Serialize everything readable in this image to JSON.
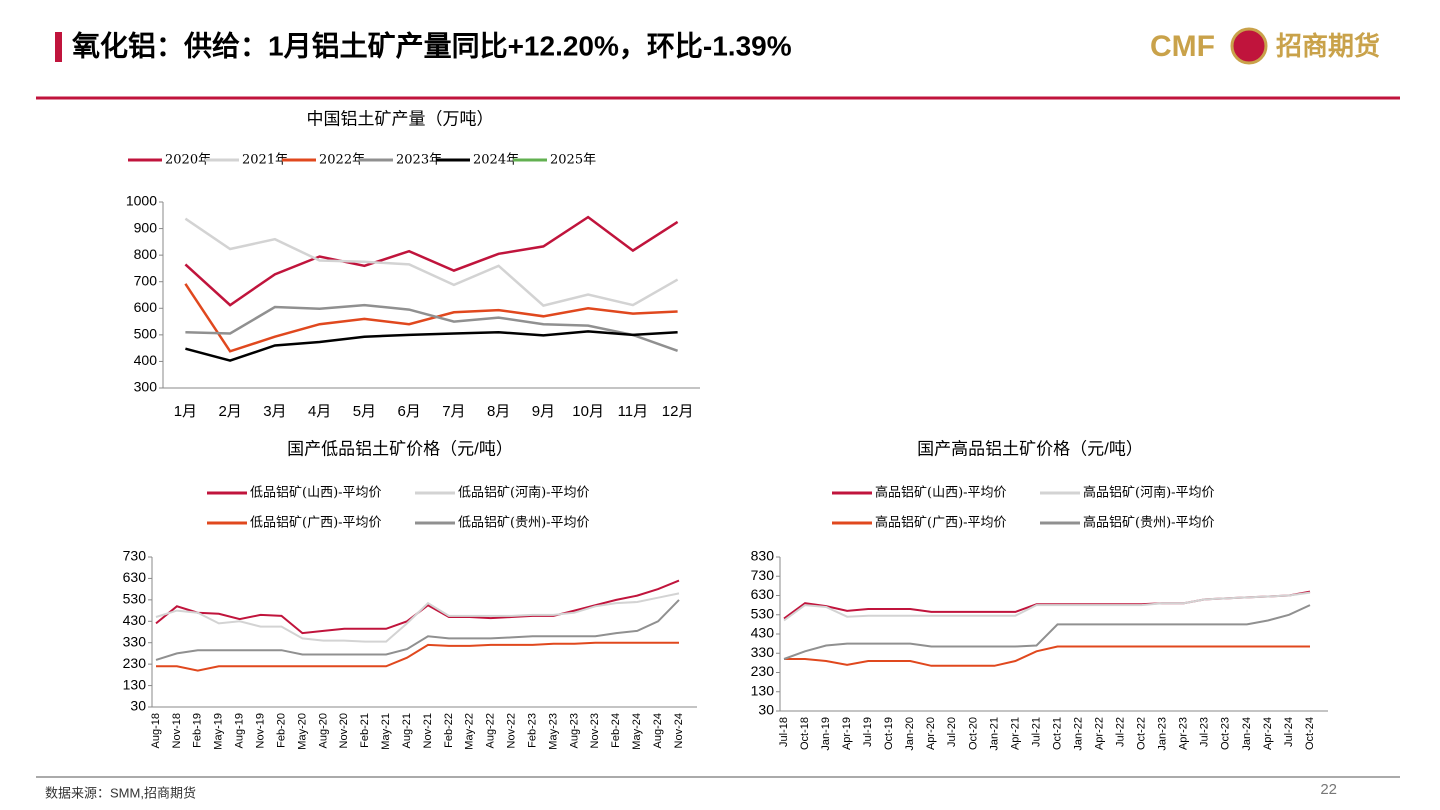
{
  "header": {
    "title": "氧化铝：供给：1月铝土矿产量同比+12.20%，环比-1.39%"
  },
  "logo": {
    "brand": "CMF",
    "name": "招商期货"
  },
  "footer": {
    "source": "数据来源：SMM,招商期货",
    "page": "22"
  },
  "chart_data": [
    {
      "type": "line",
      "title": "中国铝土矿产量（万吨）",
      "categories": [
        "1月",
        "2月",
        "3月",
        "4月",
        "5月",
        "6月",
        "7月",
        "8月",
        "9月",
        "10月",
        "11月",
        "12月"
      ],
      "series": [
        {
          "name": "2020年",
          "color": "#c0143c",
          "values": [
            765,
            612,
            728,
            795,
            760,
            815,
            742,
            805,
            833,
            943,
            817,
            925
          ]
        },
        {
          "name": "2021年",
          "color": "#d3d3d3",
          "values": [
            937,
            823,
            860,
            780,
            775,
            765,
            688,
            760,
            610,
            652,
            612,
            708
          ]
        },
        {
          "name": "2022年",
          "color": "#e0481e",
          "values": [
            692,
            438,
            493,
            540,
            560,
            540,
            585,
            593,
            570,
            600,
            580,
            588
          ]
        },
        {
          "name": "2023年",
          "color": "#909090",
          "values": [
            510,
            505,
            605,
            598,
            612,
            595,
            550,
            565,
            540,
            535,
            500,
            440
          ]
        },
        {
          "name": "2024年",
          "color": "#000000",
          "values": [
            448,
            403,
            460,
            473,
            493,
            500,
            505,
            510,
            498,
            513,
            500,
            510
          ]
        },
        {
          "name": "2025年",
          "color": "#62b050",
          "values": [
            null,
            null,
            null,
            null,
            null,
            null,
            null,
            null,
            null,
            null,
            null,
            null
          ]
        }
      ],
      "ylim": [
        300,
        1000
      ],
      "yticks": [
        300,
        400,
        500,
        600,
        700,
        800,
        900,
        1000
      ]
    },
    {
      "type": "line",
      "title": "国产低品铝土矿价格（元/吨）",
      "categories": [
        "Aug-18",
        "Nov-18",
        "Feb-19",
        "May-19",
        "Aug-19",
        "Nov-19",
        "Feb-20",
        "May-20",
        "Aug-20",
        "Nov-20",
        "Feb-21",
        "May-21",
        "Aug-21",
        "Nov-21",
        "Feb-22",
        "May-22",
        "Aug-22",
        "Nov-22",
        "Feb-23",
        "May-23",
        "Aug-23",
        "Nov-23",
        "Feb-24",
        "May-24",
        "Aug-24",
        "Nov-24"
      ],
      "series": [
        {
          "name": "低品铝矿(山西)-平均价",
          "color": "#c0143c",
          "values": [
            420,
            500,
            470,
            465,
            440,
            460,
            455,
            375,
            385,
            395,
            395,
            395,
            430,
            505,
            450,
            450,
            445,
            450,
            455,
            455,
            480,
            505,
            530,
            550,
            580,
            620
          ]
        },
        {
          "name": "低品铝矿(河南)-平均价",
          "color": "#d3d3d3",
          "values": [
            450,
            480,
            470,
            420,
            430,
            405,
            405,
            350,
            340,
            340,
            335,
            335,
            420,
            515,
            455,
            455,
            455,
            455,
            460,
            460,
            470,
            500,
            515,
            520,
            540,
            560
          ]
        },
        {
          "name": "低品铝矿(广西)-平均价",
          "color": "#e0481e",
          "values": [
            220,
            220,
            200,
            220,
            220,
            220,
            220,
            220,
            220,
            220,
            220,
            220,
            260,
            320,
            315,
            315,
            320,
            320,
            320,
            325,
            325,
            330,
            330,
            330,
            330,
            330
          ]
        },
        {
          "name": "低品铝矿(贵州)-平均价",
          "color": "#909090",
          "values": [
            250,
            280,
            295,
            295,
            295,
            295,
            295,
            275,
            275,
            275,
            275,
            275,
            300,
            360,
            350,
            350,
            350,
            355,
            360,
            360,
            360,
            360,
            375,
            385,
            430,
            530
          ]
        }
      ],
      "ylim": [
        30,
        730
      ],
      "yticks": [
        30,
        130,
        230,
        330,
        430,
        530,
        630,
        730
      ]
    },
    {
      "type": "line",
      "title": "国产高品铝土矿价格（元/吨）",
      "categories": [
        "Jul-18",
        "Oct-18",
        "Jan-19",
        "Apr-19",
        "Jul-19",
        "Oct-19",
        "Jan-20",
        "Apr-20",
        "Jul-20",
        "Oct-20",
        "Jan-21",
        "Apr-21",
        "Jul-21",
        "Oct-21",
        "Jan-22",
        "Apr-22",
        "Jul-22",
        "Oct-22",
        "Jan-23",
        "Apr-23",
        "Jul-23",
        "Oct-23",
        "Jan-24",
        "Apr-24",
        "Jul-24",
        "Oct-24"
      ],
      "series": [
        {
          "name": "高品铝矿(山西)-平均价",
          "color": "#c0143c",
          "values": [
            510,
            590,
            575,
            550,
            560,
            560,
            560,
            545,
            545,
            545,
            545,
            545,
            585,
            585,
            585,
            585,
            585,
            585,
            590,
            590,
            610,
            615,
            620,
            625,
            630,
            650
          ]
        },
        {
          "name": "高品铝矿(河南)-平均价",
          "color": "#d3d3d3",
          "values": [
            500,
            580,
            570,
            520,
            525,
            525,
            525,
            525,
            525,
            525,
            525,
            525,
            580,
            580,
            580,
            580,
            580,
            580,
            590,
            590,
            610,
            615,
            620,
            625,
            630,
            645
          ]
        },
        {
          "name": "高品铝矿(广西)-平均价",
          "color": "#e0481e",
          "values": [
            300,
            300,
            290,
            270,
            290,
            290,
            290,
            265,
            265,
            265,
            265,
            290,
            340,
            365,
            365,
            365,
            365,
            365,
            365,
            365,
            365,
            365,
            365,
            365,
            365,
            365
          ]
        },
        {
          "name": "高品铝矿(贵州)-平均价",
          "color": "#909090",
          "values": [
            300,
            340,
            370,
            380,
            380,
            380,
            380,
            365,
            365,
            365,
            365,
            365,
            370,
            480,
            480,
            480,
            480,
            480,
            480,
            480,
            480,
            480,
            480,
            500,
            530,
            580
          ]
        }
      ],
      "ylim": [
        30,
        830
      ],
      "yticks": [
        30,
        130,
        230,
        330,
        430,
        530,
        630,
        730,
        830
      ]
    }
  ]
}
